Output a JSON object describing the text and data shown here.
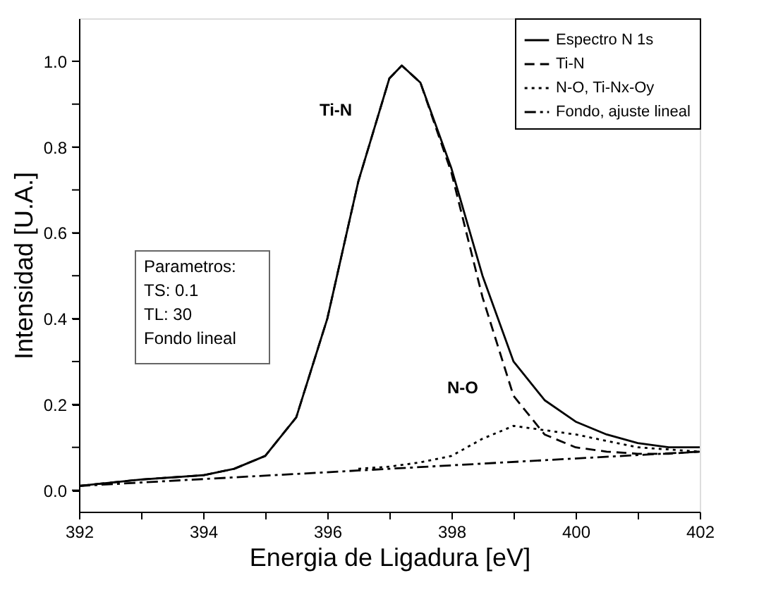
{
  "chart_data": {
    "type": "line",
    "xlabel": "Energia de Ligadura [eV]",
    "ylabel": "Intensidad [U.A.]",
    "xlim": [
      392,
      402
    ],
    "ylim": [
      -0.05,
      1.1
    ],
    "xticks": [
      392,
      {
        "value": 393,
        "label": null
      },
      394,
      {
        "value": 395,
        "label": null
      },
      396,
      {
        "value": 397,
        "label": null
      },
      398,
      {
        "value": 399,
        "label": null
      },
      400,
      {
        "value": 401,
        "label": null
      },
      402
    ],
    "yticks": [
      {
        "value": 0,
        "label": "0.0"
      },
      {
        "value": 0.1,
        "label": null
      },
      0.2,
      {
        "value": 0.3,
        "label": null
      },
      0.4,
      {
        "value": 0.5,
        "label": null
      },
      0.6,
      {
        "value": 0.7,
        "label": null
      },
      0.8,
      {
        "value": 0.9,
        "label": null
      },
      {
        "value": 1,
        "label": "1.0"
      }
    ],
    "legend": "top right",
    "grid": false,
    "marker": "none",
    "series": [
      {
        "name": "Espectro N 1s",
        "color": "#000000",
        "line_style": "solid",
        "x": [
          392,
          393,
          394,
          394.5,
          395,
          395.5,
          396,
          396.5,
          397,
          397.2,
          397.5,
          398,
          398.5,
          399,
          399.5,
          400,
          400.5,
          401,
          401.5,
          402
        ],
        "values": [
          0.01,
          0.025,
          0.035,
          0.05,
          0.08,
          0.17,
          0.4,
          0.72,
          0.96,
          0.99,
          0.95,
          0.75,
          0.5,
          0.3,
          0.21,
          0.16,
          0.13,
          0.11,
          0.1,
          0.1
        ]
      },
      {
        "name": "Ti-N",
        "color": "#000000",
        "line_style": "dashed",
        "x": [
          392,
          393,
          394,
          394.5,
          395,
          395.5,
          396,
          396.5,
          397,
          397.2,
          397.5,
          398,
          398.5,
          399,
          399.5,
          400,
          400.5,
          401,
          401.5,
          402
        ],
        "values": [
          0.01,
          0.025,
          0.035,
          0.05,
          0.08,
          0.17,
          0.4,
          0.72,
          0.96,
          0.99,
          0.95,
          0.74,
          0.45,
          0.22,
          0.13,
          0.1,
          0.09,
          0.085,
          0.085,
          0.09
        ]
      },
      {
        "name": "N-O, Ti-Nx-Oy",
        "color": "#000000",
        "line_style": "dotted",
        "x": [
          396.5,
          397,
          397.5,
          398,
          398.5,
          399,
          399.5,
          400,
          400.5,
          401,
          401.5,
          402
        ],
        "values": [
          0.05,
          0.055,
          0.065,
          0.08,
          0.12,
          0.15,
          0.14,
          0.13,
          0.115,
          0.1,
          0.095,
          0.09
        ]
      },
      {
        "name": "Fondo, ajuste lineal",
        "color": "#000000",
        "line_style": "dashdot",
        "x": [
          392,
          397,
          402
        ],
        "values": [
          0.01,
          0.05,
          0.09
        ]
      }
    ],
    "annotations": [
      "Ti-N",
      "N-O",
      "Parametros:",
      "TS: 0.1",
      "TL: 30",
      "Fondo lineal"
    ]
  }
}
